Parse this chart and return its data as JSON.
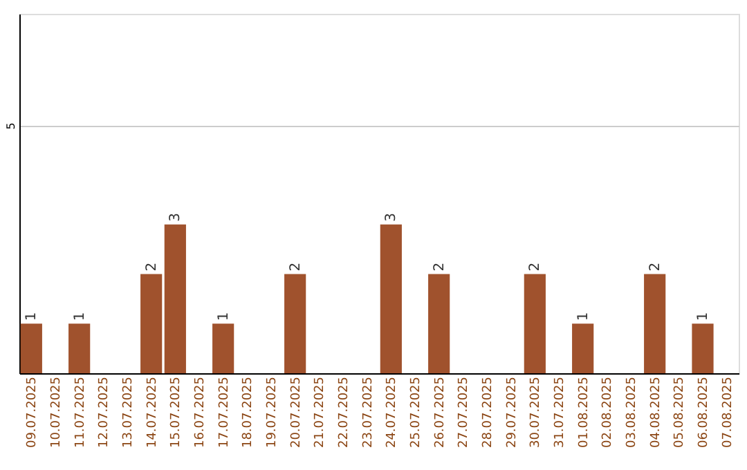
{
  "chart_data": {
    "type": "bar",
    "categories": [
      "09.07.2025",
      "10.07.2025",
      "11.07.2025",
      "12.07.2025",
      "13.07.2025",
      "14.07.2025",
      "15.07.2025",
      "16.07.2025",
      "17.07.2025",
      "18.07.2025",
      "19.07.2025",
      "20.07.2025",
      "21.07.2025",
      "22.07.2025",
      "23.07.2025",
      "24.07.2025",
      "25.07.2025",
      "26.07.2025",
      "27.07.2025",
      "28.07.2025",
      "29.07.2025",
      "30.07.2025",
      "31.07.2025",
      "01.08.2025",
      "02.08.2025",
      "03.08.2025",
      "04.08.2025",
      "05.08.2025",
      "06.08.2025",
      "07.08.2025"
    ],
    "values": [
      1,
      0,
      1,
      0,
      0,
      2,
      3,
      0,
      1,
      0,
      0,
      2,
      0,
      0,
      0,
      3,
      0,
      2,
      0,
      0,
      0,
      2,
      0,
      1,
      0,
      0,
      2,
      0,
      1,
      0
    ],
    "value_labels": [
      "1",
      null,
      "1",
      null,
      null,
      "2",
      "3",
      null,
      "1",
      null,
      null,
      "2",
      null,
      null,
      null,
      "3",
      null,
      "2",
      null,
      null,
      null,
      "2",
      null,
      "1",
      null,
      null,
      "2",
      null,
      "1",
      null
    ],
    "color": "#a0522d",
    "ylim": [
      0,
      7.25
    ],
    "yticks": [
      5
    ],
    "grid": "y"
  }
}
